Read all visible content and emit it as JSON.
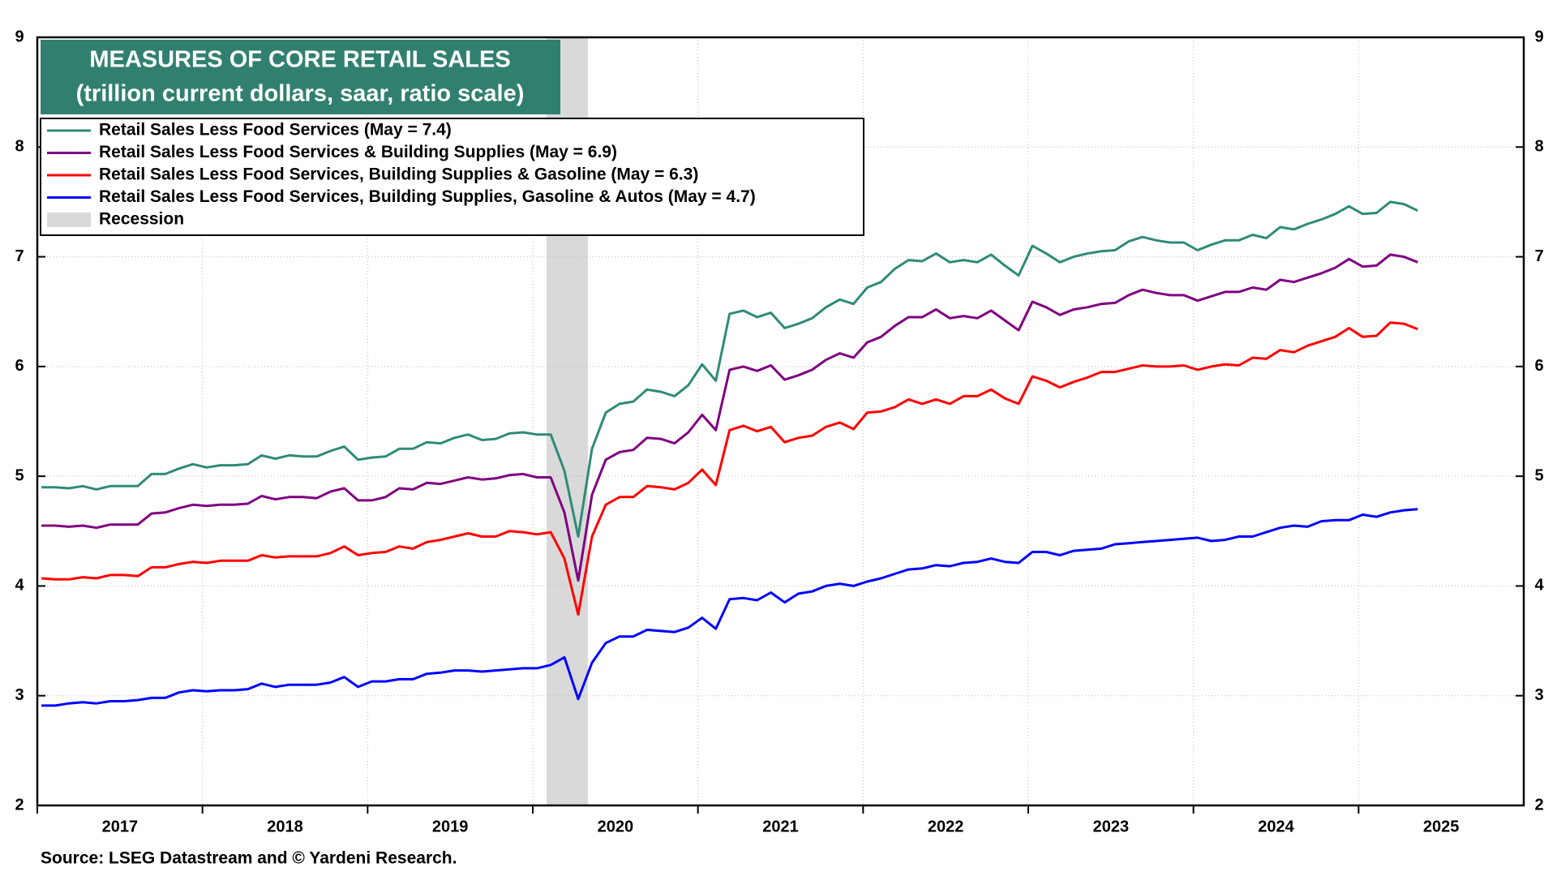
{
  "chart_data": {
    "type": "line",
    "title": "MEASURES OF CORE RETAIL SALES",
    "subtitle": "(trillion current dollars, saar, ratio scale)",
    "source": "Source: LSEG Datastream and © Yardeni Research.",
    "x": [
      "2017-01",
      "2017-02",
      "2017-03",
      "2017-04",
      "2017-05",
      "2017-06",
      "2017-07",
      "2017-08",
      "2017-09",
      "2017-10",
      "2017-11",
      "2017-12",
      "2018-01",
      "2018-02",
      "2018-03",
      "2018-04",
      "2018-05",
      "2018-06",
      "2018-07",
      "2018-08",
      "2018-09",
      "2018-10",
      "2018-11",
      "2018-12",
      "2019-01",
      "2019-02",
      "2019-03",
      "2019-04",
      "2019-05",
      "2019-06",
      "2019-07",
      "2019-08",
      "2019-09",
      "2019-10",
      "2019-11",
      "2019-12",
      "2020-01",
      "2020-02",
      "2020-03",
      "2020-04",
      "2020-05",
      "2020-06",
      "2020-07",
      "2020-08",
      "2020-09",
      "2020-10",
      "2020-11",
      "2020-12",
      "2021-01",
      "2021-02",
      "2021-03",
      "2021-04",
      "2021-05",
      "2021-06",
      "2021-07",
      "2021-08",
      "2021-09",
      "2021-10",
      "2021-11",
      "2021-12",
      "2022-01",
      "2022-02",
      "2022-03",
      "2022-04",
      "2022-05",
      "2022-06",
      "2022-07",
      "2022-08",
      "2022-09",
      "2022-10",
      "2022-11",
      "2022-12",
      "2023-01",
      "2023-02",
      "2023-03",
      "2023-04",
      "2023-05",
      "2023-06",
      "2023-07",
      "2023-08",
      "2023-09",
      "2023-10",
      "2023-11",
      "2023-12",
      "2024-01",
      "2024-02",
      "2024-03",
      "2024-04",
      "2024-05",
      "2024-06",
      "2024-07",
      "2024-08",
      "2024-09",
      "2024-10",
      "2024-11",
      "2024-12",
      "2025-01",
      "2025-02",
      "2025-03",
      "2025-04",
      "2025-05"
    ],
    "series": [
      {
        "name": "Retail Sales Less Food Services (May = 7.4)",
        "color": "#2e8b77",
        "values": [
          4.9,
          4.9,
          4.89,
          4.91,
          4.88,
          4.91,
          4.91,
          4.91,
          5.02,
          5.02,
          5.07,
          5.11,
          5.08,
          5.1,
          5.1,
          5.11,
          5.19,
          5.16,
          5.19,
          5.18,
          5.18,
          5.23,
          5.27,
          5.15,
          5.17,
          5.18,
          5.25,
          5.25,
          5.31,
          5.3,
          5.35,
          5.38,
          5.33,
          5.34,
          5.39,
          5.4,
          5.38,
          5.38,
          5.05,
          4.45,
          5.25,
          5.58,
          5.66,
          5.68,
          5.79,
          5.77,
          5.73,
          5.83,
          6.02,
          5.87,
          6.48,
          6.51,
          6.45,
          6.49,
          6.35,
          6.39,
          6.44,
          6.54,
          6.61,
          6.57,
          6.72,
          6.77,
          6.89,
          6.97,
          6.96,
          7.03,
          6.95,
          6.97,
          6.95,
          7.02,
          6.92,
          6.83,
          7.1,
          7.03,
          6.95,
          7.0,
          7.03,
          7.05,
          7.06,
          7.14,
          7.18,
          7.15,
          7.13,
          7.13,
          7.06,
          7.11,
          7.15,
          7.15,
          7.2,
          7.17,
          7.27,
          7.25,
          7.3,
          7.34,
          7.39,
          7.46,
          7.39,
          7.4,
          7.5,
          7.48,
          7.42
        ]
      },
      {
        "name": "Retail Sales Less Food Services & Building Supplies (May = 6.9)",
        "color": "#800080",
        "values": [
          4.55,
          4.55,
          4.54,
          4.55,
          4.53,
          4.56,
          4.56,
          4.56,
          4.66,
          4.67,
          4.71,
          4.74,
          4.73,
          4.74,
          4.74,
          4.75,
          4.82,
          4.79,
          4.81,
          4.81,
          4.8,
          4.86,
          4.89,
          4.78,
          4.78,
          4.81,
          4.89,
          4.88,
          4.94,
          4.93,
          4.96,
          4.99,
          4.97,
          4.98,
          5.01,
          5.02,
          4.99,
          4.99,
          4.67,
          4.05,
          4.83,
          5.15,
          5.22,
          5.24,
          5.35,
          5.34,
          5.3,
          5.4,
          5.56,
          5.42,
          5.97,
          6.0,
          5.96,
          6.01,
          5.88,
          5.92,
          5.97,
          6.06,
          6.12,
          6.08,
          6.22,
          6.27,
          6.37,
          6.45,
          6.45,
          6.52,
          6.44,
          6.46,
          6.44,
          6.51,
          6.42,
          6.33,
          6.59,
          6.54,
          6.47,
          6.52,
          6.54,
          6.57,
          6.58,
          6.65,
          6.7,
          6.67,
          6.65,
          6.65,
          6.6,
          6.64,
          6.68,
          6.68,
          6.72,
          6.7,
          6.79,
          6.77,
          6.81,
          6.85,
          6.9,
          6.98,
          6.91,
          6.92,
          7.02,
          7.0,
          6.95
        ]
      },
      {
        "name": "Retail Sales Less Food Services, Building Supplies & Gasoline (May = 6.3)",
        "color": "#ff0000",
        "values": [
          4.07,
          4.06,
          4.06,
          4.08,
          4.07,
          4.1,
          4.1,
          4.09,
          4.17,
          4.17,
          4.2,
          4.22,
          4.21,
          4.23,
          4.23,
          4.23,
          4.28,
          4.26,
          4.27,
          4.27,
          4.27,
          4.3,
          4.36,
          4.28,
          4.3,
          4.31,
          4.36,
          4.34,
          4.4,
          4.42,
          4.45,
          4.48,
          4.45,
          4.45,
          4.5,
          4.49,
          4.47,
          4.49,
          4.25,
          3.74,
          4.45,
          4.74,
          4.81,
          4.81,
          4.91,
          4.9,
          4.88,
          4.94,
          5.06,
          4.92,
          5.42,
          5.46,
          5.41,
          5.45,
          5.31,
          5.35,
          5.37,
          5.45,
          5.49,
          5.43,
          5.58,
          5.59,
          5.63,
          5.7,
          5.66,
          5.7,
          5.66,
          5.73,
          5.73,
          5.79,
          5.71,
          5.66,
          5.91,
          5.87,
          5.81,
          5.86,
          5.9,
          5.95,
          5.95,
          5.98,
          6.01,
          6.0,
          6.0,
          6.01,
          5.97,
          6.0,
          6.02,
          6.01,
          6.08,
          6.07,
          6.15,
          6.13,
          6.19,
          6.23,
          6.27,
          6.35,
          6.27,
          6.28,
          6.4,
          6.39,
          6.34
        ]
      },
      {
        "name": "Retail Sales Less Food Services, Building Supplies, Gasoline & Autos (May = 4.7)",
        "color": "#0000ff",
        "values": [
          2.91,
          2.91,
          2.93,
          2.94,
          2.93,
          2.95,
          2.95,
          2.96,
          2.98,
          2.98,
          3.03,
          3.05,
          3.04,
          3.05,
          3.05,
          3.06,
          3.11,
          3.08,
          3.1,
          3.1,
          3.1,
          3.12,
          3.17,
          3.08,
          3.13,
          3.13,
          3.15,
          3.15,
          3.2,
          3.21,
          3.23,
          3.23,
          3.22,
          3.23,
          3.24,
          3.25,
          3.25,
          3.28,
          3.35,
          2.97,
          3.3,
          3.48,
          3.54,
          3.54,
          3.6,
          3.59,
          3.58,
          3.62,
          3.71,
          3.61,
          3.88,
          3.89,
          3.87,
          3.94,
          3.85,
          3.93,
          3.95,
          4.0,
          4.02,
          4.0,
          4.04,
          4.07,
          4.11,
          4.15,
          4.16,
          4.19,
          4.18,
          4.21,
          4.22,
          4.25,
          4.22,
          4.21,
          4.31,
          4.31,
          4.28,
          4.32,
          4.33,
          4.34,
          4.38,
          4.39,
          4.4,
          4.41,
          4.42,
          4.43,
          4.44,
          4.41,
          4.42,
          4.45,
          4.45,
          4.49,
          4.53,
          4.55,
          4.54,
          4.59,
          4.6,
          4.6,
          4.65,
          4.63,
          4.67,
          4.69,
          4.7
        ]
      }
    ],
    "recession": {
      "label": "Recession",
      "start": "2020-02",
      "end": "2020-04",
      "color": "#d9d9d9"
    },
    "xlim": [
      "2017-01",
      "2026-01"
    ],
    "xticks": [
      {
        "value": "2017-01",
        "label": "2017"
      },
      {
        "value": "2018-01",
        "label": "2018"
      },
      {
        "value": "2019-01",
        "label": "2019"
      },
      {
        "value": "2020-01",
        "label": "2020"
      },
      {
        "value": "2021-01",
        "label": "2021"
      },
      {
        "value": "2022-01",
        "label": "2022"
      },
      {
        "value": "2023-01",
        "label": "2023"
      },
      {
        "value": "2024-01",
        "label": "2024"
      },
      {
        "value": "2025-01",
        "label": "2025"
      }
    ],
    "ylim": [
      2,
      9
    ],
    "yticks": [
      2,
      3,
      4,
      5,
      6,
      7,
      8,
      9
    ],
    "grid": true,
    "legend": "upper left"
  }
}
